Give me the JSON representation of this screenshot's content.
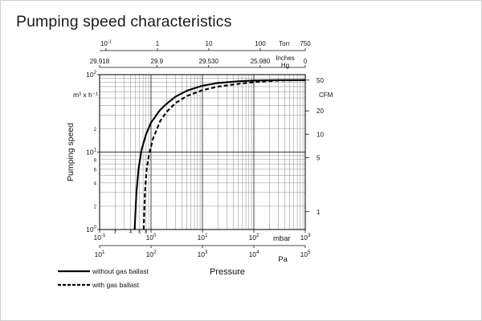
{
  "title": "Pumping speed characteristics",
  "chart_data": {
    "type": "line",
    "title": "Pumping speed characteristics",
    "xlabel": "Pressure",
    "ylabel": "Pumping speed",
    "x_scale": "log",
    "y_scale": "log",
    "xlim_mbar": [
      0.1,
      1000
    ],
    "ylim_m3h": [
      1,
      100
    ],
    "grid": true,
    "x_unit": "mbar",
    "y_unit": "m³ x h⁻¹",
    "y_unit_html": "m³ x h⁻¹",
    "mbar_ticks": [
      {
        "v": 0.1,
        "label": "10",
        "sup": "-1"
      },
      {
        "v": 1,
        "label": "10",
        "sup": "0"
      },
      {
        "v": 10,
        "label": "10",
        "sup": "1"
      },
      {
        "v": 100,
        "label": "10",
        "sup": "2"
      },
      {
        "v": 1000,
        "label": "10",
        "sup": "3"
      }
    ],
    "mbar_minor_labels": [
      {
        "v": 0.2,
        "label": "2"
      },
      {
        "v": 0.4,
        "label": "4"
      },
      {
        "v": 0.6,
        "label": "6"
      },
      {
        "v": 0.8,
        "label": "8"
      }
    ],
    "pa_unit": "Pa",
    "pa_ticks": [
      {
        "mbar": 0.1,
        "label": "10",
        "sup": "1"
      },
      {
        "mbar": 1,
        "label": "10",
        "sup": "2"
      },
      {
        "mbar": 10,
        "label": "10",
        "sup": "3"
      },
      {
        "mbar": 100,
        "label": "10",
        "sup": "4"
      },
      {
        "mbar": 1000,
        "label": "10",
        "sup": "5"
      }
    ],
    "torr_unit": "Torr",
    "torr_ticks": [
      {
        "mbar": 0.1333,
        "label": "10",
        "sup": "-1"
      },
      {
        "mbar": 1.333,
        "label": "1"
      },
      {
        "mbar": 13.33,
        "label": "10"
      },
      {
        "mbar": 133.3,
        "label": "100"
      },
      {
        "mbar": 999.9,
        "label": "750"
      }
    ],
    "inhg_unit_lines": [
      "Inches",
      "Hg"
    ],
    "inhg_ticks": [
      {
        "mbar": 0.1,
        "label": "29.918"
      },
      {
        "mbar": 1.3,
        "label": "29.9"
      },
      {
        "mbar": 13.2,
        "label": "29.530"
      },
      {
        "mbar": 133,
        "label": "25.980"
      },
      {
        "mbar": 1000,
        "label": "0"
      }
    ],
    "y_ticks": [
      {
        "v": 1,
        "label": "10",
        "sup": "0"
      },
      {
        "v": 10,
        "label": "10",
        "sup": "1"
      },
      {
        "v": 100,
        "label": "10",
        "sup": "2"
      }
    ],
    "y_minor_labels": [
      {
        "v": 2,
        "label": "2"
      },
      {
        "v": 4,
        "label": "4"
      },
      {
        "v": 6,
        "label": "6"
      },
      {
        "v": 8,
        "label": "8"
      },
      {
        "v": 20,
        "label": "2"
      }
    ],
    "cfm_unit": "CFM",
    "cfm_ticks": [
      {
        "m3h": 1.7,
        "label": "1"
      },
      {
        "m3h": 8.5,
        "label": "5"
      },
      {
        "m3h": 17,
        "label": "10"
      },
      {
        "m3h": 34,
        "label": "20"
      },
      {
        "m3h": 85,
        "label": "50"
      }
    ],
    "series": [
      {
        "name": "without gas ballast",
        "style": "solid",
        "color": "#000000",
        "points": [
          [
            0.48,
            1.0
          ],
          [
            0.52,
            3.0
          ],
          [
            0.57,
            6.0
          ],
          [
            0.65,
            10.5
          ],
          [
            0.8,
            17
          ],
          [
            1.0,
            24
          ],
          [
            1.5,
            35
          ],
          [
            2,
            42
          ],
          [
            3,
            52
          ],
          [
            5,
            62
          ],
          [
            10,
            72
          ],
          [
            20,
            78
          ],
          [
            50,
            82
          ],
          [
            100,
            84
          ],
          [
            300,
            85
          ],
          [
            1000,
            85
          ]
        ]
      },
      {
        "name": "with gas ballast",
        "style": "dashed",
        "color": "#000000",
        "points": [
          [
            0.72,
            1.0
          ],
          [
            0.76,
            3.0
          ],
          [
            0.82,
            6.0
          ],
          [
            0.92,
            9.5
          ],
          [
            1.1,
            15
          ],
          [
            1.5,
            25
          ],
          [
            2,
            33
          ],
          [
            3,
            43
          ],
          [
            5,
            53
          ],
          [
            10,
            63
          ],
          [
            20,
            70
          ],
          [
            50,
            76
          ],
          [
            100,
            80
          ],
          [
            300,
            84
          ],
          [
            1000,
            85
          ]
        ]
      }
    ]
  }
}
